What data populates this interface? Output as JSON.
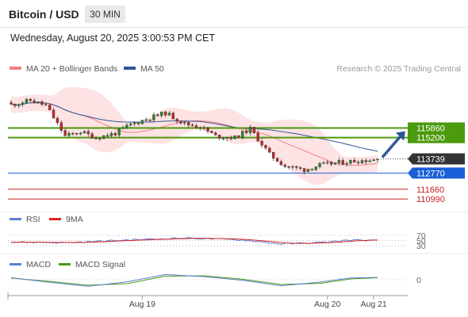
{
  "header": {
    "title": "Bitcoin / USD",
    "timeframe": "30 MIN",
    "datetime": "Wednesday, August 20, 2025 3:00:53 PM CET"
  },
  "chart_data": {
    "type": "candlestick",
    "legend": [
      {
        "label": "MA 20 + Bollinger Bands",
        "color": "#f08080"
      },
      {
        "label": "MA 50",
        "color": "#2f5597"
      }
    ],
    "credit": "Research © 2025 Trading Central",
    "y_range": [
      110400,
      119200
    ],
    "x_labels": [
      "Aug 19",
      "Aug 20",
      "Aug 21"
    ],
    "levels": [
      {
        "value": 115860,
        "label": "115860",
        "kind": "resistance",
        "color": "#4c9a0e"
      },
      {
        "value": 115200,
        "label": "115200",
        "kind": "resistance",
        "color": "#4c9a0e"
      },
      {
        "value": 113739,
        "label": "113739",
        "kind": "last",
        "color": "#333333"
      },
      {
        "value": 112770,
        "label": "112770",
        "kind": "pivot",
        "color": "#1a5fd6"
      },
      {
        "value": 111660,
        "label": "111660",
        "kind": "support",
        "color": "#cc2222"
      },
      {
        "value": 110990,
        "label": "110990",
        "kind": "support",
        "color": "#cc2222"
      }
    ],
    "candle_count": 96,
    "close_path": [
      [
        0,
        117450
      ],
      [
        5,
        117750
      ],
      [
        9,
        117400
      ],
      [
        14,
        115300
      ],
      [
        18,
        115600
      ],
      [
        22,
        115200
      ],
      [
        27,
        115500
      ],
      [
        31,
        116100
      ],
      [
        36,
        116550
      ],
      [
        40,
        116900
      ],
      [
        45,
        116150
      ],
      [
        49,
        115950
      ],
      [
        53,
        115300
      ],
      [
        58,
        115200
      ],
      [
        62,
        115800
      ],
      [
        67,
        114050
      ],
      [
        71,
        113250
      ],
      [
        76,
        113000
      ],
      [
        80,
        113300
      ],
      [
        84,
        113450
      ],
      [
        89,
        113600
      ],
      [
        92,
        113650
      ],
      [
        95,
        113700
      ]
    ],
    "forecast_target": 115860,
    "rsi": {
      "title": "RSI",
      "ma_title": "9MA",
      "colors": {
        "rsi": "#5b7fd4",
        "ma": "#dd2222"
      },
      "levels": [
        "70",
        "50",
        "30"
      ],
      "values_path": [
        [
          0,
          44
        ],
        [
          15,
          42
        ],
        [
          30,
          52
        ],
        [
          45,
          60
        ],
        [
          60,
          52
        ],
        [
          70,
          37
        ],
        [
          80,
          42
        ],
        [
          88,
          52
        ],
        [
          95,
          50
        ]
      ]
    },
    "macd": {
      "title": "MACD",
      "signal_title": "MACD Signal",
      "colors": {
        "macd": "#5b7fd4",
        "signal": "#4c9a0e"
      },
      "zero_label": "0",
      "macd_path": [
        [
          0,
          80
        ],
        [
          10,
          -100
        ],
        [
          20,
          -250
        ],
        [
          30,
          -80
        ],
        [
          40,
          200
        ],
        [
          50,
          120
        ],
        [
          60,
          -20
        ],
        [
          70,
          -230
        ],
        [
          80,
          -90
        ],
        [
          88,
          70
        ],
        [
          95,
          90
        ]
      ],
      "signal_path": [
        [
          0,
          60
        ],
        [
          10,
          -60
        ],
        [
          20,
          -210
        ],
        [
          30,
          -150
        ],
        [
          40,
          140
        ],
        [
          50,
          150
        ],
        [
          60,
          20
        ],
        [
          70,
          -180
        ],
        [
          80,
          -140
        ],
        [
          88,
          30
        ],
        [
          95,
          80
        ]
      ]
    }
  }
}
